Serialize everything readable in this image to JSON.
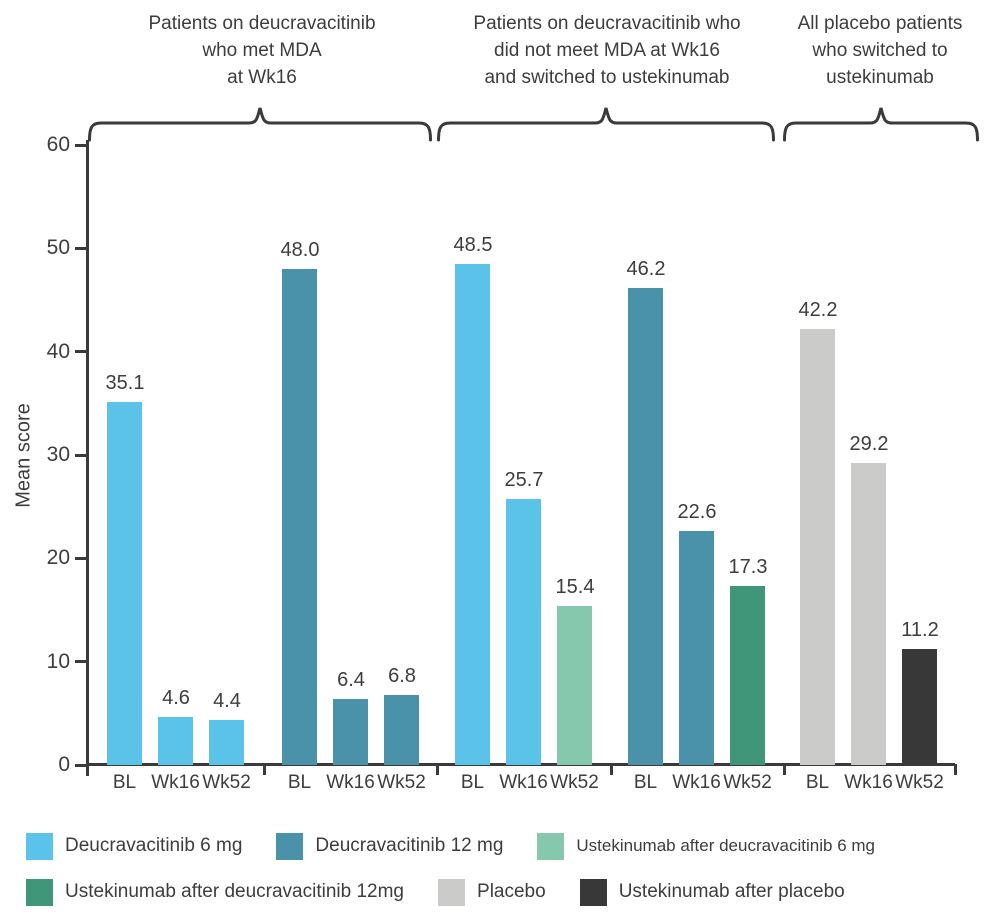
{
  "header_groups": [
    {
      "lines": [
        "Patients on deucravacitinib",
        "who met MDA",
        "at Wk16"
      ]
    },
    {
      "lines": [
        "Patients on deucravacitinib who",
        "did not meet MDA at Wk16",
        "and switched to ustekinumab"
      ]
    },
    {
      "lines": [
        "All placebo patients",
        "who switched to",
        "ustekinumab"
      ]
    }
  ],
  "chart_data": {
    "type": "bar",
    "title": "",
    "ylabel": "Mean score",
    "ylim": [
      0,
      60
    ],
    "yticks": [
      0,
      10,
      20,
      30,
      40,
      50,
      60
    ],
    "grid": false,
    "timepoint_labels": [
      "BL",
      "Wk16",
      "Wk52"
    ],
    "colors": {
      "deucravacitinib_6mg": "#5BC2EA",
      "deucravacitinib_12mg": "#4A92A9",
      "ustekinumab_after_deucravacitinib_6mg": "#85C8AD",
      "ustekinumab_after_deucravacitinib_12mg": "#3F9678",
      "placebo": "#CBCBCA",
      "ustekinumab_after_placebo": "#383838"
    },
    "groups": [
      {
        "header_index": 0,
        "bars": [
          {
            "x": "BL",
            "value": 35.1,
            "series": "Deucravacitinib 6 mg",
            "color_key": "deucravacitinib_6mg"
          },
          {
            "x": "Wk16",
            "value": 4.6,
            "series": "Deucravacitinib 6 mg",
            "color_key": "deucravacitinib_6mg"
          },
          {
            "x": "Wk52",
            "value": 4.4,
            "series": "Deucravacitinib 6 mg",
            "color_key": "deucravacitinib_6mg"
          }
        ]
      },
      {
        "header_index": 0,
        "bars": [
          {
            "x": "BL",
            "value": 48.0,
            "series": "Deucravacitinib 12 mg",
            "color_key": "deucravacitinib_12mg"
          },
          {
            "x": "Wk16",
            "value": 6.4,
            "series": "Deucravacitinib 12 mg",
            "color_key": "deucravacitinib_12mg"
          },
          {
            "x": "Wk52",
            "value": 6.8,
            "series": "Deucravacitinib 12 mg",
            "color_key": "deucravacitinib_12mg"
          }
        ]
      },
      {
        "header_index": 1,
        "bars": [
          {
            "x": "BL",
            "value": 48.5,
            "series": "Deucravacitinib 6 mg",
            "color_key": "deucravacitinib_6mg"
          },
          {
            "x": "Wk16",
            "value": 25.7,
            "series": "Deucravacitinib 6 mg",
            "color_key": "deucravacitinib_6mg"
          },
          {
            "x": "Wk52",
            "value": 15.4,
            "series": "Ustekinumab after deucravacitinib 6 mg",
            "color_key": "ustekinumab_after_deucravacitinib_6mg"
          }
        ]
      },
      {
        "header_index": 1,
        "bars": [
          {
            "x": "BL",
            "value": 46.2,
            "series": "Deucravacitinib 12 mg",
            "color_key": "deucravacitinib_12mg"
          },
          {
            "x": "Wk16",
            "value": 22.6,
            "series": "Deucravacitinib 12 mg",
            "color_key": "deucravacitinib_12mg"
          },
          {
            "x": "Wk52",
            "value": 17.3,
            "series": "Ustekinumab after deucravacitinib 12mg",
            "color_key": "ustekinumab_after_deucravacitinib_12mg"
          }
        ]
      },
      {
        "header_index": 2,
        "bars": [
          {
            "x": "BL",
            "value": 42.2,
            "series": "Placebo",
            "color_key": "placebo"
          },
          {
            "x": "Wk16",
            "value": 29.2,
            "series": "Placebo",
            "color_key": "placebo"
          },
          {
            "x": "Wk52",
            "value": 11.2,
            "series": "Ustekinumab after placebo",
            "color_key": "ustekinumab_after_placebo"
          }
        ]
      }
    ],
    "legend": {
      "position": "bottom",
      "rows": [
        [
          {
            "label": "Deucravacitinib 6 mg",
            "color_key": "deucravacitinib_6mg"
          },
          {
            "label": "Deucravacitinib 12 mg",
            "color_key": "deucravacitinib_12mg"
          },
          {
            "label": "Ustekinumab after deucravacitinib 6 mg",
            "color_key": "ustekinumab_after_deucravacitinib_6mg"
          }
        ],
        [
          {
            "label": "Ustekinumab after deucravacitinib 12mg",
            "color_key": "ustekinumab_after_deucravacitinib_12mg"
          },
          {
            "label": "Placebo",
            "color_key": "placebo"
          },
          {
            "label": "Ustekinumab after placebo",
            "color_key": "ustekinumab_after_placebo"
          }
        ]
      ]
    }
  }
}
